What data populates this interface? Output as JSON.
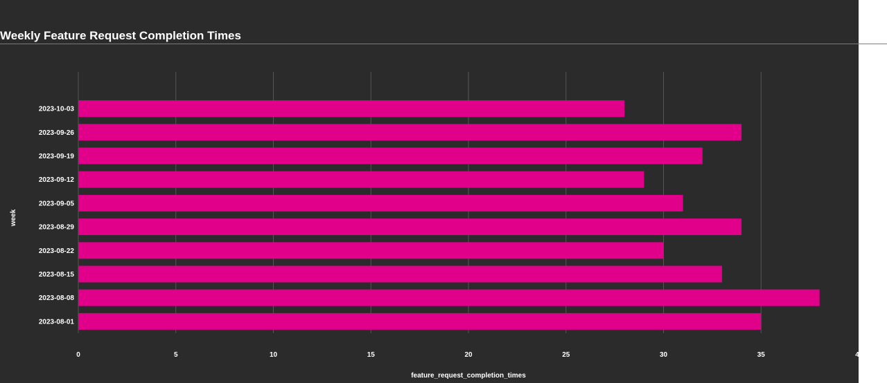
{
  "title": "Weekly Feature Request Completion Times",
  "colors": {
    "background": "#2b2b2b",
    "bar": "#e0008a",
    "grid": "#555555",
    "text": "#ffffff"
  },
  "chart_data": {
    "type": "bar",
    "orientation": "horizontal",
    "title": "Weekly Feature Request Completion Times",
    "xlabel": "feature_request_completion_times",
    "ylabel": "week",
    "categories": [
      "2023-08-01",
      "2023-08-08",
      "2023-08-15",
      "2023-08-22",
      "2023-08-29",
      "2023-09-05",
      "2023-09-12",
      "2023-09-19",
      "2023-09-26",
      "2023-10-03"
    ],
    "values": [
      35,
      38,
      33,
      30,
      34,
      31,
      29,
      32,
      34,
      28
    ],
    "xlim": [
      0,
      40
    ],
    "xticks": [
      "0",
      "5",
      "10",
      "15",
      "20",
      "25",
      "30",
      "35",
      "4"
    ],
    "grid": true,
    "legend": "none"
  }
}
